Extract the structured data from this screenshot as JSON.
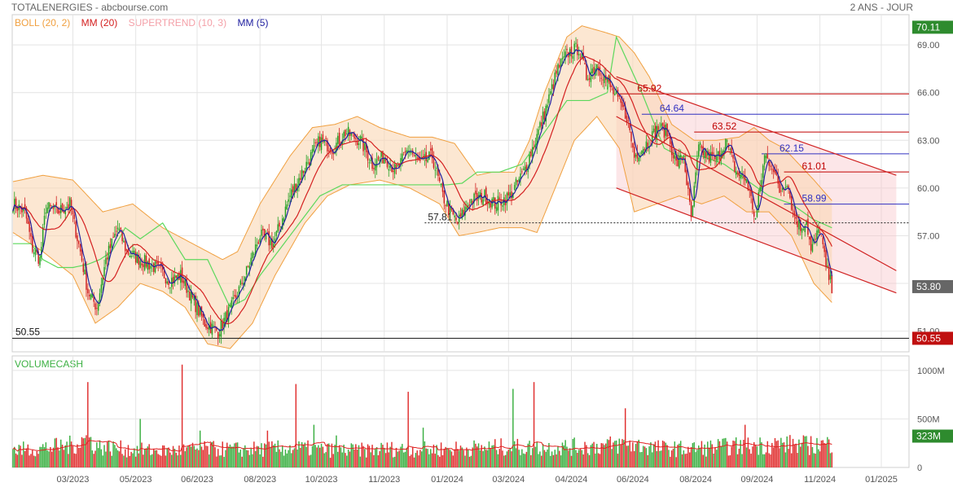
{
  "header": {
    "title": "TOTALENERGIES - abcbourse.com",
    "period": "2 ANS - JOUR"
  },
  "legend": [
    {
      "label": "BOLL (20, 2)",
      "color": "#f0a040"
    },
    {
      "label": "MM (20)",
      "color": "#d42020"
    },
    {
      "label": "SUPERTREND (10, 3)",
      "color": "#f4a0a8"
    },
    {
      "label": "MM (5)",
      "color": "#2020a0"
    }
  ],
  "volume_label": "VOLUMECASH",
  "chart_data": {
    "type": "candlestick",
    "price_axis": {
      "ylim": [
        49.7,
        70.9
      ],
      "ticks": [
        "51.00",
        "54.00",
        "57.00",
        "60.00",
        "63.00",
        "66.00",
        "69.00"
      ]
    },
    "volume_axis": {
      "ylim": [
        0,
        1150
      ],
      "ticks": [
        "0",
        "500M",
        "1000M"
      ]
    },
    "x_ticks": [
      "03/2023",
      "05/2023",
      "06/2023",
      "08/2023",
      "10/2023",
      "11/2023",
      "01/2024",
      "03/2024",
      "04/2024",
      "06/2024",
      "08/2024",
      "09/2024",
      "11/2024",
      "01/2025"
    ],
    "x_tick_index": [
      40,
      82,
      123,
      165,
      206,
      248,
      290,
      331,
      373,
      414,
      456,
      497,
      539,
      580
    ],
    "n_days": 599,
    "price_anchors": [
      [
        0,
        59.0
      ],
      [
        8,
        58.5
      ],
      [
        13,
        56.2
      ],
      [
        18,
        55.5
      ],
      [
        22,
        58.8
      ],
      [
        30,
        58.5
      ],
      [
        38,
        59.0
      ],
      [
        45,
        56.0
      ],
      [
        50,
        53.5
      ],
      [
        56,
        52.5
      ],
      [
        62,
        55.5
      ],
      [
        70,
        57.5
      ],
      [
        76,
        56.0
      ],
      [
        85,
        55.5
      ],
      [
        95,
        55.0
      ],
      [
        105,
        54.2
      ],
      [
        112,
        54.5
      ],
      [
        120,
        53.0
      ],
      [
        128,
        51.5
      ],
      [
        137,
        51.0
      ],
      [
        146,
        52.5
      ],
      [
        155,
        54.5
      ],
      [
        165,
        57.0
      ],
      [
        174,
        56.5
      ],
      [
        185,
        59.5
      ],
      [
        196,
        61.5
      ],
      [
        205,
        63.0
      ],
      [
        214,
        62.5
      ],
      [
        222,
        63.5
      ],
      [
        232,
        63.0
      ],
      [
        240,
        61.5
      ],
      [
        248,
        62.0
      ],
      [
        256,
        61.0
      ],
      [
        264,
        62.5
      ],
      [
        272,
        61.5
      ],
      [
        280,
        62.0
      ],
      [
        287,
        59.5
      ],
      [
        292,
        58.5
      ],
      [
        297,
        57.8
      ],
      [
        305,
        59.2
      ],
      [
        315,
        59.5
      ],
      [
        322,
        59.0
      ],
      [
        332,
        59.5
      ],
      [
        341,
        61.0
      ],
      [
        349,
        63.0
      ],
      [
        356,
        65.0
      ],
      [
        364,
        67.5
      ],
      [
        371,
        68.5
      ],
      [
        378,
        68.8
      ],
      [
        383,
        67.0
      ],
      [
        390,
        67.8
      ],
      [
        398,
        66.5
      ],
      [
        404,
        65.5
      ],
      [
        410,
        64.5
      ],
      [
        415,
        62.0
      ],
      [
        420,
        62.5
      ],
      [
        425,
        63.0
      ],
      [
        431,
        63.8
      ],
      [
        437,
        63.5
      ],
      [
        443,
        61.5
      ],
      [
        448,
        62.0
      ],
      [
        453,
        58.0
      ],
      [
        458,
        62.5
      ],
      [
        464,
        62.0
      ],
      [
        470,
        61.8
      ],
      [
        476,
        63.0
      ],
      [
        483,
        61.0
      ],
      [
        490,
        60.5
      ],
      [
        496,
        58.0
      ],
      [
        502,
        62.0
      ],
      [
        507,
        61.5
      ],
      [
        512,
        59.8
      ],
      [
        517,
        60.5
      ],
      [
        521,
        58.5
      ],
      [
        526,
        57.5
      ],
      [
        530,
        58.0
      ],
      [
        533,
        56.0
      ],
      [
        539,
        57.5
      ],
      [
        543,
        55.0
      ],
      [
        547,
        53.8
      ]
    ],
    "bollinger_up_anchors": [
      [
        0,
        60.4
      ],
      [
        20,
        60.8
      ],
      [
        40,
        60.5
      ],
      [
        60,
        58.5
      ],
      [
        80,
        59.0
      ],
      [
        100,
        57.5
      ],
      [
        120,
        56.5
      ],
      [
        140,
        55.5
      ],
      [
        150,
        56.0
      ],
      [
        165,
        59.0
      ],
      [
        185,
        62.0
      ],
      [
        200,
        63.8
      ],
      [
        215,
        64.0
      ],
      [
        230,
        64.5
      ],
      [
        245,
        63.8
      ],
      [
        265,
        63.2
      ],
      [
        280,
        63.2
      ],
      [
        295,
        62.8
      ],
      [
        310,
        60.8
      ],
      [
        320,
        61.0
      ],
      [
        335,
        61.0
      ],
      [
        345,
        63.0
      ],
      [
        355,
        66.0
      ],
      [
        370,
        69.5
      ],
      [
        380,
        70.2
      ],
      [
        395,
        69.8
      ],
      [
        405,
        69.5
      ],
      [
        415,
        68.5
      ],
      [
        425,
        67.0
      ],
      [
        440,
        64.0
      ],
      [
        455,
        63.0
      ],
      [
        470,
        63.0
      ],
      [
        485,
        63.2
      ],
      [
        495,
        63.8
      ],
      [
        505,
        63.0
      ],
      [
        515,
        62.5
      ],
      [
        525,
        61.5
      ],
      [
        535,
        60.5
      ],
      [
        547,
        59.2
      ]
    ],
    "bollinger_dn_anchors": [
      [
        0,
        57.2
      ],
      [
        20,
        56.0
      ],
      [
        40,
        54.5
      ],
      [
        55,
        51.5
      ],
      [
        70,
        52.5
      ],
      [
        85,
        54.0
      ],
      [
        100,
        53.5
      ],
      [
        115,
        52.5
      ],
      [
        130,
        50.2
      ],
      [
        145,
        49.9
      ],
      [
        160,
        51.5
      ],
      [
        175,
        54.5
      ],
      [
        195,
        57.8
      ],
      [
        210,
        59.5
      ],
      [
        225,
        60.2
      ],
      [
        245,
        60.5
      ],
      [
        265,
        60.0
      ],
      [
        285,
        59.0
      ],
      [
        298,
        57.0
      ],
      [
        310,
        57.2
      ],
      [
        325,
        57.5
      ],
      [
        340,
        57.5
      ],
      [
        350,
        57.2
      ],
      [
        360,
        59.5
      ],
      [
        375,
        63.0
      ],
      [
        390,
        64.5
      ],
      [
        405,
        62.5
      ],
      [
        415,
        58.5
      ],
      [
        430,
        59.0
      ],
      [
        445,
        59.5
      ],
      [
        460,
        59.0
      ],
      [
        475,
        59.5
      ],
      [
        490,
        58.5
      ],
      [
        505,
        58.5
      ],
      [
        520,
        57.0
      ],
      [
        535,
        54.0
      ],
      [
        547,
        52.8
      ]
    ],
    "supertrend_anchors": [
      [
        0,
        56.5
      ],
      [
        12,
        56.5
      ],
      [
        20,
        55.5
      ],
      [
        30,
        55.0
      ],
      [
        40,
        55.0
      ],
      [
        50,
        55.2
      ],
      [
        58,
        55.5
      ],
      [
        66,
        56.0
      ],
      [
        75,
        57.5
      ],
      [
        85,
        56.8
      ],
      [
        100,
        57.8
      ],
      [
        115,
        55.5
      ],
      [
        130,
        55.5
      ],
      [
        145,
        52.5
      ],
      [
        155,
        53.0
      ],
      [
        165,
        54.5
      ],
      [
        185,
        57.0
      ],
      [
        205,
        59.5
      ],
      [
        220,
        60.2
      ],
      [
        235,
        60.2
      ],
      [
        255,
        60.2
      ],
      [
        275,
        60.2
      ],
      [
        290,
        60.2
      ],
      [
        300,
        60.3
      ],
      [
        310,
        61.0
      ],
      [
        325,
        61.0
      ],
      [
        340,
        61.5
      ],
      [
        355,
        63.5
      ],
      [
        370,
        65.5
      ],
      [
        385,
        65.5
      ],
      [
        397,
        66.0
      ],
      [
        403,
        69.5
      ],
      [
        420,
        66.0
      ],
      [
        435,
        62.5
      ],
      [
        445,
        62.0
      ],
      [
        460,
        62.0
      ],
      [
        475,
        61.5
      ],
      [
        490,
        60.5
      ],
      [
        505,
        59.5
      ],
      [
        520,
        59.0
      ],
      [
        535,
        58.0
      ],
      [
        547,
        57.5
      ]
    ],
    "volume_anchors": [
      [
        0,
        180
      ],
      [
        20,
        200
      ],
      [
        40,
        230
      ],
      [
        50,
        310
      ],
      [
        55,
        220
      ],
      [
        80,
        180
      ],
      [
        100,
        170
      ],
      [
        115,
        180
      ],
      [
        130,
        190
      ],
      [
        150,
        185
      ],
      [
        170,
        190
      ],
      [
        190,
        200
      ],
      [
        210,
        180
      ],
      [
        230,
        175
      ],
      [
        250,
        190
      ],
      [
        270,
        185
      ],
      [
        290,
        190
      ],
      [
        310,
        200
      ],
      [
        330,
        210
      ],
      [
        350,
        200
      ],
      [
        370,
        210
      ],
      [
        390,
        220
      ],
      [
        410,
        240
      ],
      [
        430,
        200
      ],
      [
        450,
        190
      ],
      [
        470,
        210
      ],
      [
        490,
        220
      ],
      [
        510,
        240
      ],
      [
        530,
        230
      ],
      [
        547,
        240
      ]
    ],
    "volume_spikes": [
      [
        50,
        880
      ],
      [
        85,
        500
      ],
      [
        113,
        1060
      ],
      [
        125,
        380
      ],
      [
        170,
        380
      ],
      [
        189,
        860
      ],
      [
        201,
        440
      ],
      [
        216,
        330
      ],
      [
        264,
        780
      ],
      [
        274,
        410
      ],
      [
        334,
        810
      ],
      [
        348,
        880
      ],
      [
        409,
        610
      ],
      [
        489,
        440
      ],
      [
        552,
        360
      ]
    ],
    "levels": [
      {
        "value": 65.92,
        "label": "65.92",
        "color": "#c00000",
        "from": 405
      },
      {
        "value": 64.64,
        "label": "64.64",
        "color": "#3030c0",
        "from": 420
      },
      {
        "value": 63.52,
        "label": "63.52",
        "color": "#c00000",
        "from": 455
      },
      {
        "value": 62.15,
        "label": "62.15",
        "color": "#3030c0",
        "from": 500
      },
      {
        "value": 61.01,
        "label": "61.01",
        "color": "#c00000",
        "from": 515
      },
      {
        "value": 58.99,
        "label": "58.99",
        "color": "#3030c0",
        "from": 515
      }
    ],
    "support_level": {
      "value": 57.81,
      "label": "57.81",
      "from": 275
    },
    "floor_level": {
      "value": 50.55,
      "label": "50.55"
    },
    "channel": {
      "upper": [
        [
          403,
          67.0
        ],
        [
          590,
          60.8
        ]
      ],
      "middle": [
        [
          403,
          64.5
        ],
        [
          590,
          54.8
        ]
      ],
      "lower": [
        [
          403,
          60.0
        ],
        [
          590,
          53.4
        ]
      ]
    },
    "badges": [
      {
        "value": 70.11,
        "label": "70.11",
        "color": "#2e8b2e"
      },
      {
        "value": 53.8,
        "label": "53.80",
        "color": "#666666"
      },
      {
        "value": 50.55,
        "label": "50.55",
        "color": "#c01010"
      }
    ],
    "volume_badge": {
      "value": 323,
      "label": "323M",
      "color": "#2e8b2e"
    }
  }
}
